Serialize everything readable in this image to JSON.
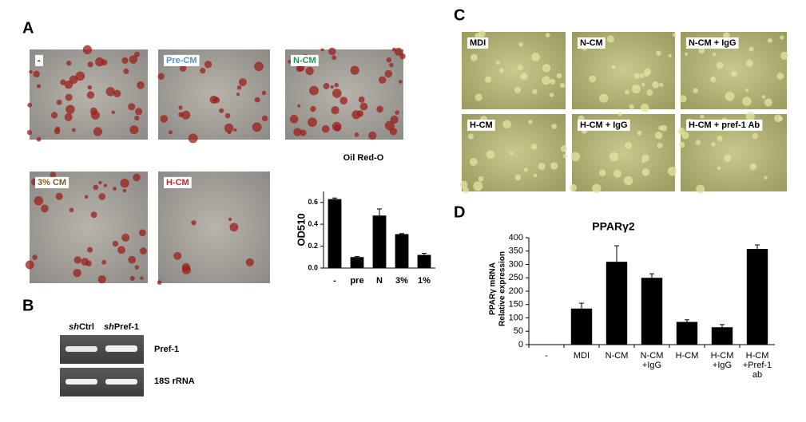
{
  "panels": {
    "A": {
      "label": "A",
      "images": [
        "-",
        "Pre-CM",
        "N-CM",
        "3% CM",
        "H-CM"
      ]
    },
    "B": {
      "label": "B",
      "lanes": [
        {
          "prefix": "sh",
          "name": "Ctrl"
        },
        {
          "prefix": "sh",
          "name": "Pref-1"
        }
      ],
      "bands": [
        "Pref-1",
        "18S rRNA"
      ]
    },
    "C": {
      "label": "C",
      "images": [
        "MDI",
        "N-CM",
        "N-CM + IgG",
        "H-CM",
        "H-CM + IgG",
        "H-CM + pref-1 Ab"
      ]
    },
    "D": {
      "label": "D"
    }
  },
  "chart_data": [
    {
      "type": "bar",
      "title": "Oil Red-O",
      "y_label": [
        "OD510"
      ],
      "categories": [
        "-",
        "pre",
        "N",
        "3%",
        "1%"
      ],
      "values": [
        0.63,
        0.1,
        0.48,
        0.31,
        0.12
      ],
      "errors": [
        0.01,
        0.005,
        0.06,
        0.005,
        0.015
      ],
      "color": "#000000",
      "ylim": [
        0,
        0.7
      ],
      "yticks": [
        {
          "value": 0,
          "label": "0.0"
        },
        {
          "value": 0.2,
          "label": "0.2"
        },
        {
          "value": 0.4,
          "label": "0.4"
        },
        {
          "value": 0.6,
          "label": "0.6"
        }
      ]
    },
    {
      "type": "bar",
      "title": "PPARγ2",
      "y_label": [
        "PPARγ mRNA",
        "Relative expression"
      ],
      "categories": [
        "-",
        "MDI",
        "N-CM",
        "N-CM +IgG",
        "H-CM",
        "H-CM +IgG",
        "H-CM +Pref-1 ab"
      ],
      "values": [
        0,
        135,
        310,
        250,
        85,
        65,
        358
      ],
      "errors": [
        0,
        20,
        60,
        15,
        8,
        10,
        15
      ],
      "color": "#000000",
      "ylim": [
        0,
        400
      ],
      "yticks": [
        0,
        50,
        100,
        150,
        200,
        250,
        300,
        350,
        400
      ]
    }
  ]
}
